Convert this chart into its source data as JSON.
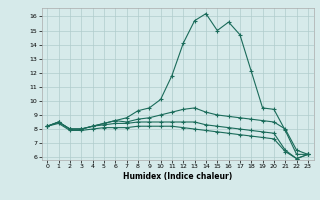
{
  "title": "",
  "xlabel": "Humidex (Indice chaleur)",
  "ylabel": "",
  "background_color": "#d6eaea",
  "grid_color": "#b0cccc",
  "line_color": "#1a6b5a",
  "xlim": [
    -0.5,
    23.5
  ],
  "ylim": [
    5.8,
    16.6
  ],
  "xticks": [
    0,
    1,
    2,
    3,
    4,
    5,
    6,
    7,
    8,
    9,
    10,
    11,
    12,
    13,
    14,
    15,
    16,
    17,
    18,
    19,
    20,
    21,
    22,
    23
  ],
  "yticks": [
    6,
    7,
    8,
    9,
    10,
    11,
    12,
    13,
    14,
    15,
    16
  ],
  "line1": [
    8.2,
    8.5,
    8.0,
    8.0,
    8.2,
    8.4,
    8.6,
    8.8,
    9.3,
    9.5,
    10.1,
    11.8,
    14.1,
    15.7,
    16.2,
    15.0,
    15.6,
    14.7,
    12.1,
    9.5,
    9.4,
    7.9,
    6.2,
    6.2
  ],
  "line2": [
    8.2,
    8.5,
    8.0,
    8.0,
    8.2,
    8.4,
    8.6,
    8.5,
    8.7,
    8.8,
    9.0,
    9.2,
    9.4,
    9.5,
    9.2,
    9.0,
    8.9,
    8.8,
    8.7,
    8.6,
    8.5,
    8.0,
    6.5,
    6.2
  ],
  "line3": [
    8.2,
    8.5,
    8.0,
    8.0,
    8.2,
    8.3,
    8.4,
    8.4,
    8.5,
    8.5,
    8.5,
    8.5,
    8.5,
    8.5,
    8.3,
    8.2,
    8.1,
    8.0,
    7.9,
    7.8,
    7.7,
    6.5,
    5.9,
    6.2
  ],
  "line4": [
    8.2,
    8.4,
    7.9,
    7.9,
    8.0,
    8.1,
    8.1,
    8.1,
    8.2,
    8.2,
    8.2,
    8.2,
    8.1,
    8.0,
    7.9,
    7.8,
    7.7,
    7.6,
    7.5,
    7.4,
    7.3,
    6.4,
    5.9,
    6.2
  ]
}
